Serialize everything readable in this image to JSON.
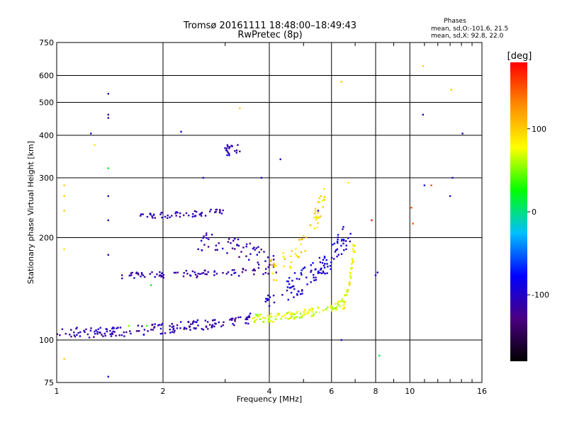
{
  "chart_data": {
    "type": "scatter",
    "title": "Tromsø 20161111 18:48:00–18:49:43",
    "subtitle": "RwPretec (8p)",
    "xlabel": "Frequency [MHz]",
    "ylabel": "Stationary phase Virtual Height [km]",
    "x_scale": "log",
    "y_scale": "log",
    "xlim": [
      1,
      16
    ],
    "ylim": [
      75,
      750
    ],
    "x_ticks": [
      1,
      2,
      4,
      6,
      8,
      10,
      16
    ],
    "y_ticks": [
      75,
      100,
      200,
      300,
      400,
      500,
      600,
      750
    ],
    "grid": true,
    "info": {
      "heading": "Phases",
      "line_o": "mean, sd,O:-101.6, 21.5",
      "line_x": "mean, sd,X: 92.8, 22.0"
    },
    "colorbar": {
      "label": "[deg]",
      "ticks": [
        -100,
        0,
        100
      ],
      "range": [
        -180,
        180
      ],
      "colors": [
        "#000000",
        "#4b0082",
        "#0000ff",
        "#00bfff",
        "#00ff00",
        "#ffff00",
        "#ff8c00",
        "#ff0000"
      ]
    },
    "series": [
      {
        "traces": [
          {
            "f0": 1.0,
            "f1": 3.6,
            "h0": 105,
            "h1": 116,
            "phase": -110,
            "n": 170,
            "jitter": 0.035
          },
          {
            "f0": 3.6,
            "f1": 6.4,
            "h0": 116,
            "h1": 127,
            "phase": 70,
            "n": 110,
            "jitter": 0.03
          },
          {
            "f0": 6.4,
            "f1": 7.0,
            "h0": 127,
            "h1": 200,
            "phase": 80,
            "n": 45,
            "jitter": 0.04
          },
          {
            "f0": 3.7,
            "f1": 6.8,
            "h0": 130,
            "h1": 200,
            "phase": -100,
            "n": 60,
            "jitter": 0.05
          },
          {
            "f0": 1.7,
            "f1": 3.0,
            "h0": 232,
            "h1": 240,
            "phase": -110,
            "n": 55,
            "jitter": 0.02
          },
          {
            "f0": 1.5,
            "f1": 4.0,
            "h0": 155,
            "h1": 160,
            "phase": -110,
            "n": 80,
            "jitter": 0.025
          },
          {
            "f0": 2.5,
            "f1": 4.2,
            "h0": 195,
            "h1": 165,
            "phase": -110,
            "n": 60,
            "jitter": 0.06
          },
          {
            "f0": 3.0,
            "f1": 3.3,
            "h0": 360,
            "h1": 370,
            "phase": -110,
            "n": 20,
            "jitter": 0.04
          },
          {
            "f0": 4.0,
            "f1": 5.8,
            "h0": 160,
            "h1": 270,
            "phase": 90,
            "n": 60,
            "jitter": 0.09
          },
          {
            "f0": 4.5,
            "f1": 6.6,
            "h0": 150,
            "h1": 210,
            "phase": -90,
            "n": 55,
            "jitter": 0.06
          }
        ],
        "scatter_points": [
          [
            1.4,
            530,
            -110
          ],
          [
            1.4,
            460,
            -110
          ],
          [
            1.4,
            450,
            -110
          ],
          [
            1.25,
            405,
            -100
          ],
          [
            1.28,
            375,
            90
          ],
          [
            1.4,
            320,
            20
          ],
          [
            1.05,
            285,
            100
          ],
          [
            1.05,
            265,
            100
          ],
          [
            1.05,
            240,
            100
          ],
          [
            1.05,
            185,
            90
          ],
          [
            1.05,
            88,
            100
          ],
          [
            1.4,
            78,
            -100
          ],
          [
            1.4,
            265,
            -110
          ],
          [
            1.4,
            225,
            -110
          ],
          [
            1.4,
            178,
            -110
          ],
          [
            2.25,
            410,
            -100
          ],
          [
            2.6,
            300,
            -110
          ],
          [
            3.3,
            480,
            100
          ],
          [
            4.3,
            340,
            -100
          ],
          [
            6.4,
            575,
            100
          ],
          [
            6.7,
            290,
            90
          ],
          [
            6.4,
            100,
            -100
          ],
          [
            8.2,
            90,
            10
          ],
          [
            10.2,
            220,
            150
          ],
          [
            10.1,
            245,
            150
          ],
          [
            10.9,
            460,
            -100
          ],
          [
            10.9,
            640,
            100
          ],
          [
            13.1,
            545,
            100
          ],
          [
            13.2,
            300,
            -110
          ],
          [
            14.1,
            405,
            -100
          ],
          [
            11.5,
            285,
            150
          ],
          [
            11.0,
            285,
            -100
          ],
          [
            13.0,
            265,
            -110
          ],
          [
            7.8,
            225,
            170
          ],
          [
            8.0,
            155,
            -100
          ],
          [
            8.1,
            158,
            -100
          ],
          [
            5.6,
            265,
            100
          ],
          [
            5.5,
            240,
            -100
          ],
          [
            3.8,
            300,
            -100
          ],
          [
            1.85,
            145,
            20
          ],
          [
            1.6,
            110,
            50
          ],
          [
            1.8,
            110,
            40
          ]
        ]
      }
    ]
  }
}
